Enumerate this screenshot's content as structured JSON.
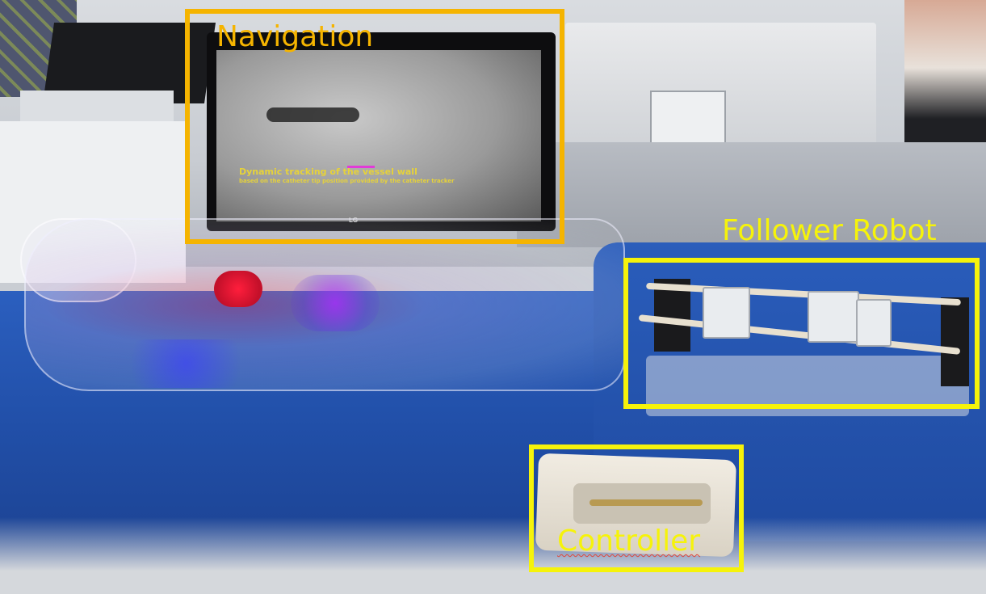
{
  "photo": {
    "description_colors": {
      "navigation_box": "#f5b400",
      "follower_robot_box": "#f6f30a",
      "controller_box": "#f6f30a",
      "table_cloth": "#2459b4"
    },
    "screen_text": {
      "headline": "Dynamic tracking of the vessel wall",
      "subline": "based on the catheter tip position provided by the catheter tracker",
      "monitor_brand": "LG"
    }
  },
  "annotations": {
    "navigation": {
      "label": "Navigation"
    },
    "follower_robot": {
      "label": "Follower Robot"
    },
    "controller": {
      "label": "Controller"
    }
  }
}
